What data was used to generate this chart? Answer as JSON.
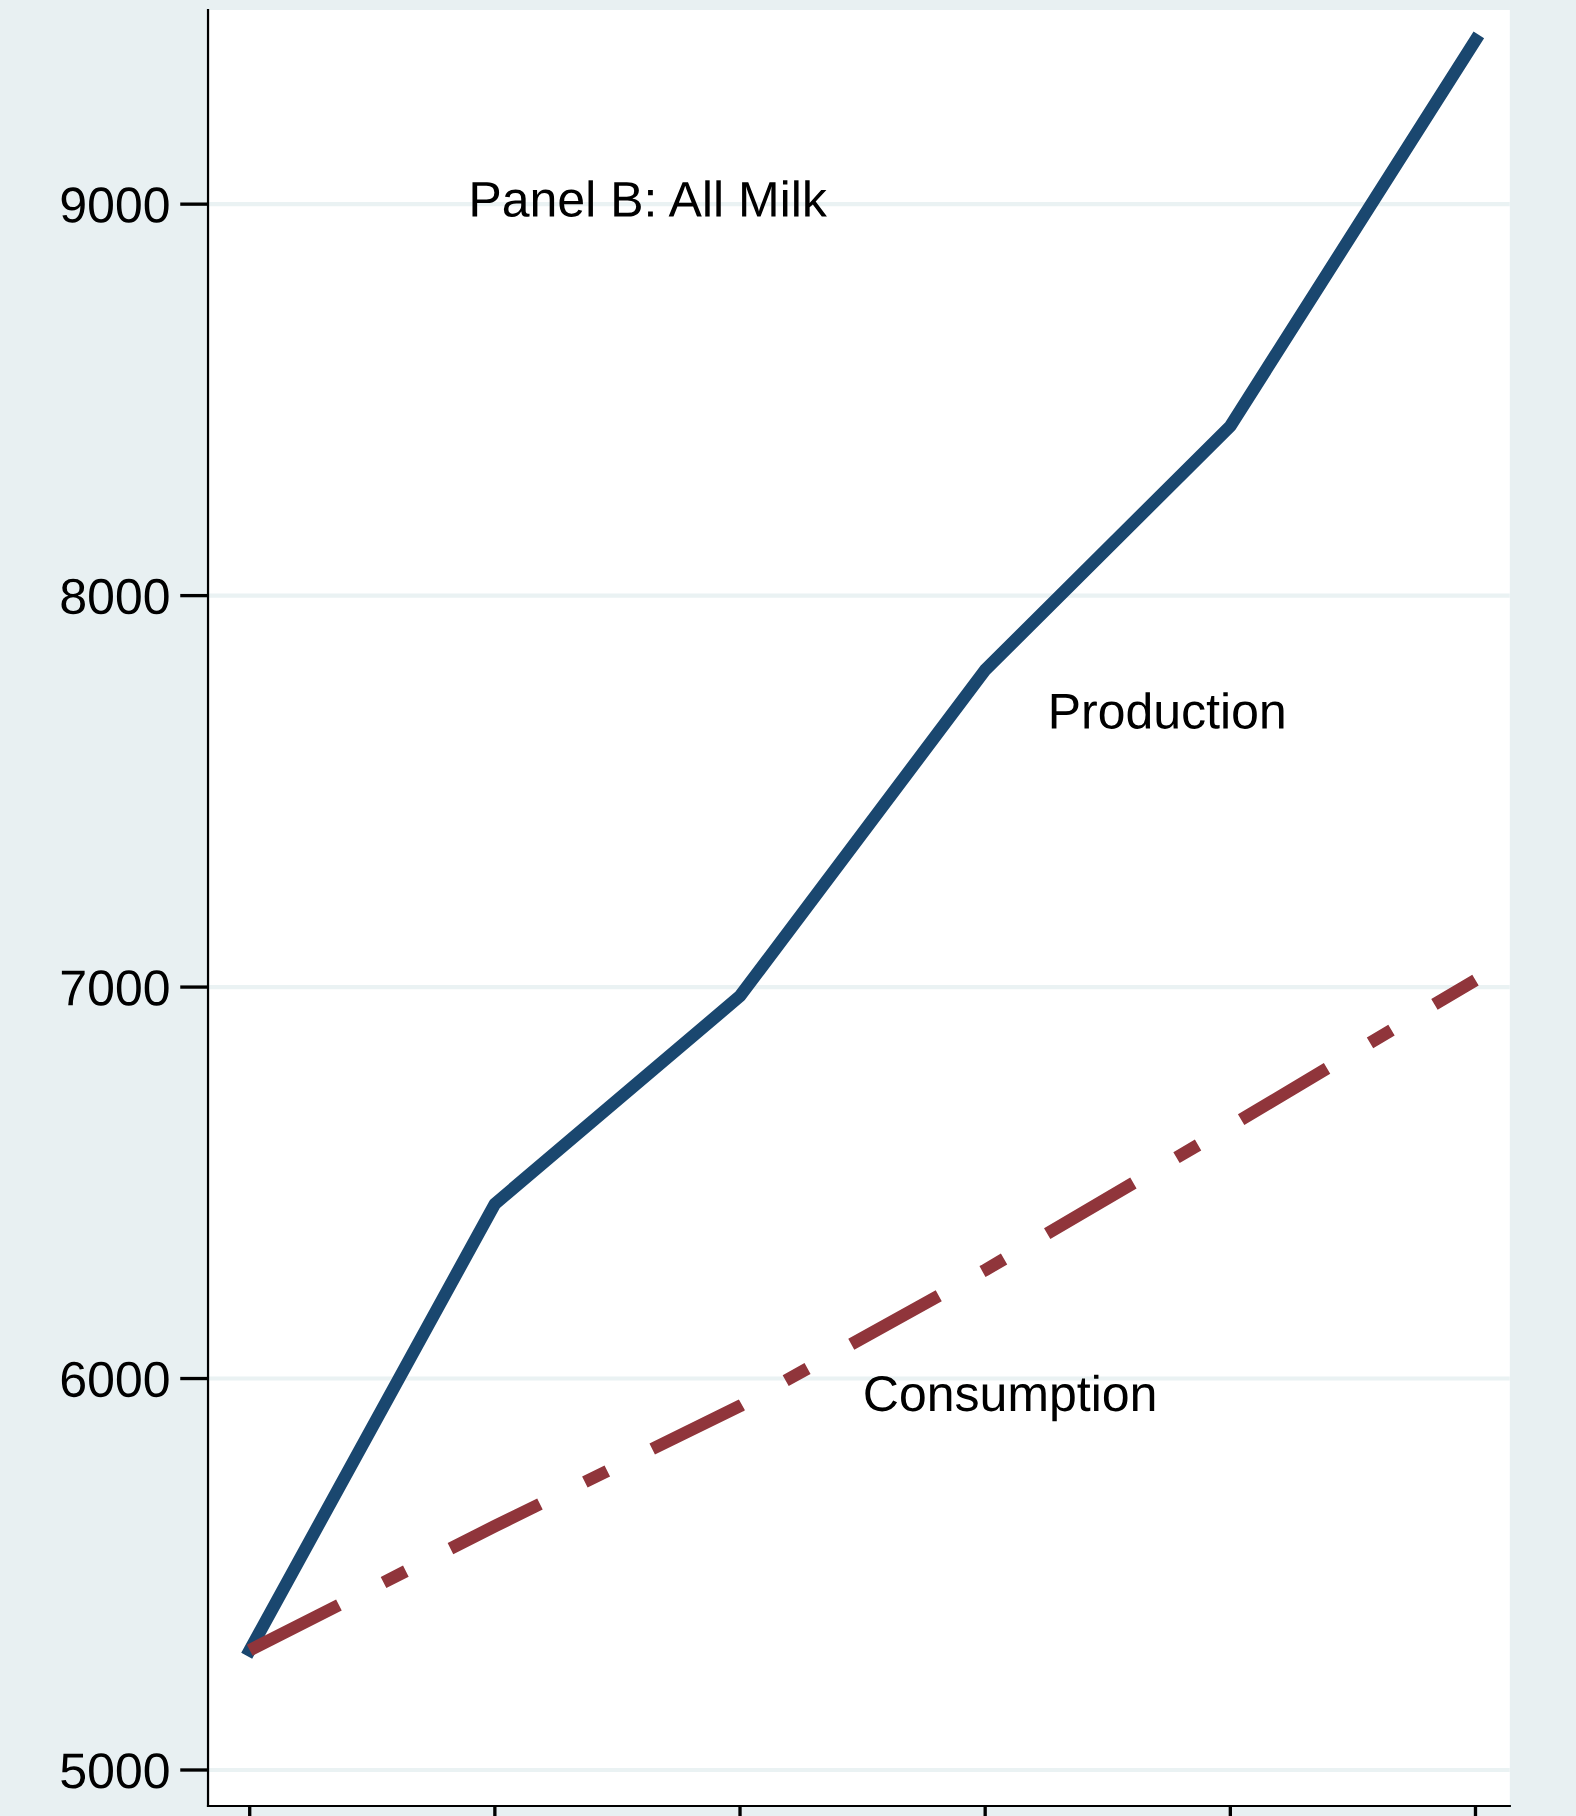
{
  "chart_data": {
    "type": "line",
    "title": "Panel B: All Milk",
    "categories": [
      null,
      null,
      null,
      null,
      null,
      null
    ],
    "series": [
      {
        "name": "Production",
        "color": "#1a476f",
        "line_style": "solid",
        "values": [
          5306,
          6446,
          6977,
          7810,
          8433,
          9419
        ]
      },
      {
        "name": "Consumption",
        "color": "#90353b",
        "line_style": "dashdot",
        "values": [
          5306,
          5623,
          5930,
          6277,
          6645,
          7018
        ]
      }
    ],
    "ylim": [
      4908,
      9496
    ],
    "yticks": [
      5000,
      6000,
      7000,
      8000,
      9000
    ],
    "grid": "y",
    "tick_labels": "y",
    "legend": false,
    "marker": "none"
  }
}
